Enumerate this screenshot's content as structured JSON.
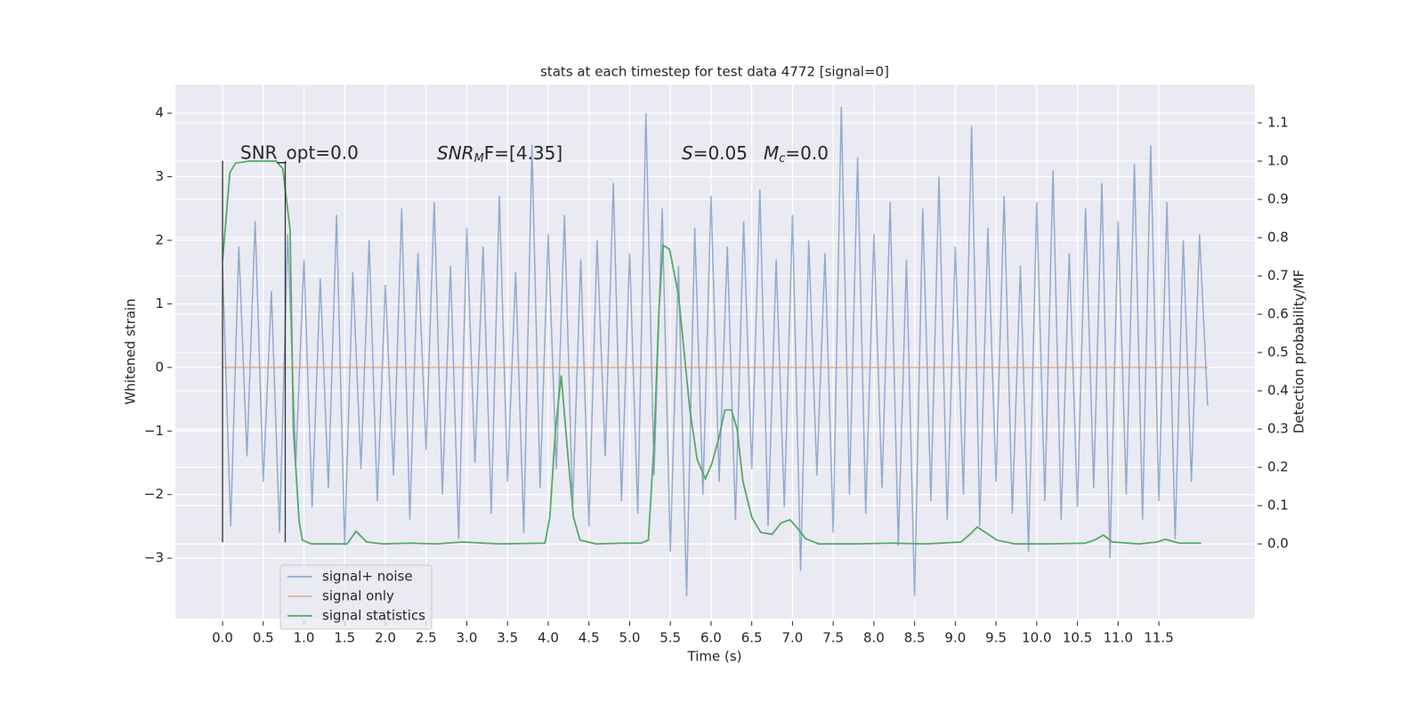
{
  "chart_data": {
    "type": "line",
    "title": "stats at each timestep for test data 4772 [signal=0]",
    "x_label": "Time (s)",
    "y_label": "Whitened strain",
    "y2_label": "Detection probability/MF",
    "xlim": [
      -0.58,
      12.68
    ],
    "ylim": [
      -3.95,
      4.45
    ],
    "y2lim": [
      -0.195,
      1.2
    ],
    "grid": true,
    "legend": "lower left",
    "xticks": [
      {
        "value": 0,
        "label": "0.0"
      },
      {
        "value": 0.5,
        "label": "0.5"
      },
      {
        "value": 1,
        "label": "1.0"
      },
      {
        "value": 1.5,
        "label": "1.5"
      },
      {
        "value": 2,
        "label": "2.0"
      },
      {
        "value": 2.5,
        "label": "2.5"
      },
      {
        "value": 3,
        "label": "3.0"
      },
      {
        "value": 3.5,
        "label": "3.5"
      },
      {
        "value": 4,
        "label": "4.0"
      },
      {
        "value": 4.5,
        "label": "4.5"
      },
      {
        "value": 5,
        "label": "5.0"
      },
      {
        "value": 5.5,
        "label": "5.5"
      },
      {
        "value": 6,
        "label": "6.0"
      },
      {
        "value": 6.5,
        "label": "6.5"
      },
      {
        "value": 7,
        "label": "7.0"
      },
      {
        "value": 7.5,
        "label": "7.5"
      },
      {
        "value": 8,
        "label": "8.0"
      },
      {
        "value": 8.5,
        "label": "8.5"
      },
      {
        "value": 9,
        "label": "9.0"
      },
      {
        "value": 9.5,
        "label": "9.5"
      },
      {
        "value": 10,
        "label": "10.0"
      },
      {
        "value": 10.5,
        "label": "10.5"
      },
      {
        "value": 11,
        "label": "11.0"
      },
      {
        "value": 11.5,
        "label": "11.5"
      }
    ],
    "yticks": [
      {
        "value": -3,
        "label": "−3"
      },
      {
        "value": -2,
        "label": "−2"
      },
      {
        "value": -1,
        "label": "−1"
      },
      0,
      1,
      2,
      3,
      4
    ],
    "y2ticks": [
      {
        "value": 0,
        "label": "0.0"
      },
      {
        "value": 0.1,
        "label": "0.1"
      },
      {
        "value": 0.2,
        "label": "0.2"
      },
      {
        "value": 0.3,
        "label": "0.3"
      },
      {
        "value": 0.4,
        "label": "0.4"
      },
      {
        "value": 0.5,
        "label": "0.5"
      },
      {
        "value": 0.6,
        "label": "0.6"
      },
      {
        "value": 0.7,
        "label": "0.7"
      },
      {
        "value": 0.8,
        "label": "0.8"
      },
      {
        "value": 0.9,
        "label": "0.9"
      },
      {
        "value": 1,
        "label": "1.0"
      },
      {
        "value": 1.1,
        "label": "1.1"
      }
    ],
    "annotations": [
      {
        "text": "SNR_opt=0.0"
      },
      {
        "base": "SNR",
        "sub": "M",
        "rest": "F=[4.35]"
      },
      {
        "base": "S",
        "rest": "=0.05"
      },
      {
        "base": "M",
        "sub": "c",
        "rest": "=0.0"
      }
    ],
    "marker_lines": {
      "x": [
        0,
        0.77
      ],
      "y": [
        -2.75,
        3.25
      ]
    },
    "series": [
      {
        "name": "signal+ noise",
        "color": "#4c72b0",
        "x": [
          0,
          0.1,
          0.2,
          0.3,
          0.4,
          0.5,
          0.6,
          0.7,
          0.8,
          0.9,
          1,
          1.1,
          1.2,
          1.3,
          1.4,
          1.5,
          1.6,
          1.7,
          1.8,
          1.9,
          2,
          2.1,
          2.2,
          2.3,
          2.4,
          2.5,
          2.6,
          2.7,
          2.8,
          2.9,
          3,
          3.1,
          3.2,
          3.3,
          3.4,
          3.5,
          3.6,
          3.7,
          3.8,
          3.9,
          4,
          4.1,
          4.2,
          4.3,
          4.4,
          4.5,
          4.6,
          4.7,
          4.8,
          4.9,
          5,
          5.1,
          5.2,
          5.3,
          5.4,
          5.5,
          5.6,
          5.7,
          5.8,
          5.9,
          6,
          6.1,
          6.2,
          6.3,
          6.4,
          6.5,
          6.6,
          6.7,
          6.8,
          6.9,
          7,
          7.1,
          7.2,
          7.3,
          7.4,
          7.5,
          7.6,
          7.7,
          7.8,
          7.9,
          8,
          8.1,
          8.2,
          8.3,
          8.4,
          8.5,
          8.6,
          8.7,
          8.8,
          8.9,
          9,
          9.1,
          9.2,
          9.3,
          9.4,
          9.5,
          9.6,
          9.7,
          9.8,
          9.9,
          10,
          10.1,
          10.2,
          10.3,
          10.4,
          10.5,
          10.6,
          10.7,
          10.8,
          10.9,
          11,
          11.1,
          11.2,
          11.3,
          11.4,
          11.5,
          11.6,
          11.7,
          11.8,
          11.9,
          12,
          12.1
        ],
        "values": [
          1.6,
          -2.5,
          1.9,
          -1.4,
          2.3,
          -1.8,
          1.2,
          -2.6,
          2.1,
          -1.5,
          1.7,
          -2.2,
          1.4,
          -1.9,
          2.4,
          -2.8,
          1.5,
          -1.6,
          2.0,
          -2.1,
          1.3,
          -1.7,
          2.5,
          -2.4,
          1.8,
          -1.3,
          2.6,
          -2.0,
          1.6,
          -2.7,
          2.2,
          -1.5,
          1.9,
          -2.3,
          2.7,
          -1.8,
          1.5,
          -2.6,
          3.5,
          -1.9,
          2.1,
          -1.6,
          2.4,
          -2.2,
          1.7,
          -2.5,
          2.0,
          -1.4,
          2.9,
          -2.1,
          1.8,
          -2.3,
          4.0,
          -1.7,
          2.5,
          -2.9,
          1.6,
          -3.6,
          2.2,
          -2.0,
          2.7,
          -1.8,
          1.9,
          -2.4,
          2.3,
          -1.6,
          2.8,
          -2.5,
          1.7,
          -2.2,
          2.4,
          -3.2,
          2.0,
          -1.7,
          1.8,
          -2.6,
          4.1,
          -2.0,
          3.3,
          -2.3,
          2.1,
          -1.9,
          2.6,
          -2.8,
          1.7,
          -3.6,
          2.5,
          -2.1,
          3.0,
          -2.4,
          1.9,
          -2.0,
          3.8,
          -2.5,
          2.2,
          -1.8,
          2.7,
          -2.3,
          1.6,
          -2.9,
          2.6,
          -2.1,
          3.1,
          -2.4,
          1.8,
          -2.2,
          2.5,
          -1.9,
          2.9,
          -3.0,
          2.3,
          -2.0,
          3.2,
          -2.4,
          3.5,
          -2.1,
          2.6,
          -2.7,
          2.0,
          -1.8,
          2.1,
          -0.6
        ]
      },
      {
        "name": "signal only",
        "color": "#dd8452",
        "x": [
          0,
          12.1
        ],
        "values": [
          0,
          0
        ]
      },
      {
        "name": "signal statistics",
        "color": "#55a868",
        "axis": "y2",
        "x": [
          0,
          0.09,
          0.16,
          0.33,
          0.66,
          0.74,
          0.79,
          0.83,
          0.87,
          0.94,
          0.98,
          1.09,
          1.53,
          1.64,
          1.77,
          1.97,
          2.3,
          2.62,
          2.95,
          3.39,
          3.96,
          4.02,
          4.09,
          4.16,
          4.23,
          4.31,
          4.39,
          4.59,
          4.92,
          5.14,
          5.23,
          5.3,
          5.36,
          5.41,
          5.49,
          5.6,
          5.74,
          5.83,
          5.93,
          6.01,
          6.1,
          6.17,
          6.25,
          6.32,
          6.39,
          6.5,
          6.61,
          6.75,
          6.86,
          6.97,
          7.05,
          7.16,
          7.32,
          7.76,
          8.2,
          8.64,
          9.07,
          9.18,
          9.27,
          9.37,
          9.51,
          9.73,
          10.16,
          10.6,
          10.71,
          10.82,
          10.93,
          11.26,
          11.48,
          11.58,
          11.75,
          12.02
        ],
        "values": [
          0.74,
          0.97,
          0.995,
          1.0,
          1.0,
          0.98,
          0.89,
          0.82,
          0.3,
          0.06,
          0.01,
          0,
          0,
          0.033,
          0.005,
          0,
          0.002,
          0,
          0.005,
          0,
          0.002,
          0.07,
          0.3,
          0.44,
          0.26,
          0.07,
          0.01,
          0,
          0.002,
          0.002,
          0.01,
          0.26,
          0.61,
          0.78,
          0.77,
          0.65,
          0.35,
          0.22,
          0.17,
          0.21,
          0.28,
          0.35,
          0.35,
          0.3,
          0.165,
          0.07,
          0.03,
          0.025,
          0.055,
          0.063,
          0.044,
          0.014,
          0,
          0,
          0.002,
          0,
          0.005,
          0.025,
          0.044,
          0.03,
          0.01,
          0,
          0,
          0.002,
          0.01,
          0.023,
          0.005,
          0,
          0.005,
          0.012,
          0.002,
          0.002
        ]
      }
    ]
  }
}
